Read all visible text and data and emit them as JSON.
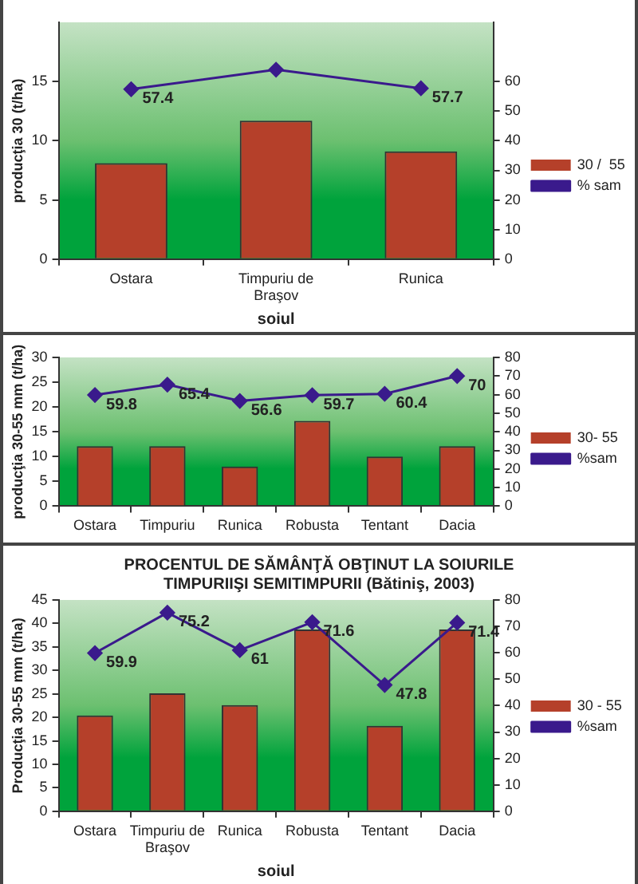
{
  "chart_data": [
    {
      "type": "bar",
      "xlabel": "soiul",
      "ylabel": "producţia 30 (t/ha)",
      "categories": [
        "Ostara",
        "Timpuriu de Braşov",
        "Runica"
      ],
      "ylim": [
        0,
        20
      ],
      "yticks": [
        0,
        5,
        10,
        15
      ],
      "y2lim": [
        0,
        80
      ],
      "y2ticks": [
        0,
        10,
        20,
        30,
        40,
        50,
        60
      ],
      "legend": "right",
      "marker": "diamond",
      "series": [
        {
          "name": "30 /  55",
          "color": "#b5402a",
          "values": [
            8.1,
            11.7,
            9.1
          ]
        },
        {
          "name": "% sam",
          "type": "line",
          "axis": "y2",
          "color": "#3a1a8c",
          "values": [
            57.4,
            64,
            57.7
          ],
          "value_labels": [
            "57.4",
            null,
            "57.7"
          ]
        }
      ]
    },
    {
      "type": "bar",
      "ylabel": "producţia 30-55 mm (t/ha)",
      "categories": [
        "Ostara",
        "Timpuriu",
        "Runica",
        "Robusta",
        "Tentant",
        "Dacia"
      ],
      "ylim": [
        0,
        30
      ],
      "yticks": [
        0,
        5,
        10,
        15,
        20,
        25,
        30
      ],
      "y2lim": [
        0,
        80
      ],
      "y2ticks": [
        0,
        10,
        20,
        30,
        40,
        50,
        60,
        70,
        80
      ],
      "legend": "right",
      "marker": "diamond",
      "series": [
        {
          "name": "30- 55",
          "color": "#b5402a",
          "values": [
            12.1,
            12.1,
            8.0,
            17.2,
            10.0,
            12.1
          ]
        },
        {
          "name": "%sam",
          "type": "line",
          "axis": "y2",
          "color": "#3a1a8c",
          "values": [
            59.8,
            65.4,
            56.6,
            59.7,
            60.4,
            70
          ],
          "value_labels": [
            "59.8",
            "65.4",
            "56.6",
            "59.7",
            "60.4",
            "70"
          ]
        }
      ]
    },
    {
      "type": "bar",
      "title": "PROCENTUL DE SĂMÂNŢĂ OBŢINUT LA SOIURILE TIMPURIIŞI SEMITIMPURII (Bătiniş, 2003)",
      "xlabel": "soiul",
      "ylabel": "Producţia 30-55 mm (t/ha)",
      "categories": [
        "Ostara",
        "Timpuriu de Braşov",
        "Runica",
        "Robusta",
        "Tentant",
        "Dacia"
      ],
      "ylim": [
        0,
        45
      ],
      "yticks": [
        0,
        5,
        10,
        15,
        20,
        25,
        30,
        35,
        40,
        45
      ],
      "y2lim": [
        0,
        80
      ],
      "y2ticks": [
        0,
        10,
        20,
        30,
        40,
        50,
        60,
        70,
        80
      ],
      "legend": "right",
      "marker": "diamond",
      "series": [
        {
          "name": "30 - 55",
          "color": "#b5402a",
          "values": [
            20.4,
            25.1,
            22.6,
            38.7,
            18.2,
            38.7
          ]
        },
        {
          "name": "%sam",
          "type": "line",
          "axis": "y2",
          "color": "#3a1a8c",
          "values": [
            59.9,
            75.2,
            61,
            71.6,
            47.8,
            71.4
          ],
          "value_labels": [
            "59.9",
            "75.2",
            "61",
            "71.6",
            "47.8",
            "71.4"
          ]
        }
      ]
    }
  ]
}
